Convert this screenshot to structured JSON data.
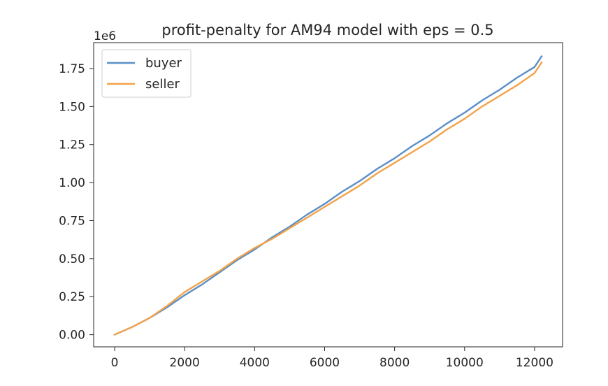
{
  "chart_data": {
    "type": "line",
    "title": "profit-penalty for AM94 model with eps = 0.5",
    "xlabel": "",
    "ylabel": "",
    "y_offset_label": "1e6",
    "xlim": [
      -600,
      12800
    ],
    "ylim": [
      -0.08,
      1.92
    ],
    "x_ticks": [
      0,
      2000,
      4000,
      6000,
      8000,
      10000,
      12000
    ],
    "x_tick_labels": [
      "0",
      "2000",
      "4000",
      "6000",
      "8000",
      "10000",
      "12000"
    ],
    "y_ticks": [
      0.0,
      0.25,
      0.5,
      0.75,
      1.0,
      1.25,
      1.5,
      1.75
    ],
    "y_tick_labels": [
      "0.00",
      "0.25",
      "0.50",
      "0.75",
      "1.00",
      "1.25",
      "1.50",
      "1.75"
    ],
    "grid": false,
    "legend_position": "top-left",
    "colors": {
      "buyer": "#5a8fc6",
      "seller": "#f2a24a",
      "axes": "#262626"
    },
    "series": [
      {
        "name": "buyer",
        "x": [
          0,
          500,
          1000,
          1500,
          2000,
          2500,
          3000,
          3500,
          4000,
          4500,
          5000,
          5500,
          6000,
          6500,
          7000,
          7500,
          8000,
          8500,
          9000,
          9500,
          10000,
          10500,
          11000,
          11500,
          12000,
          12200
        ],
        "values": [
          0.0,
          0.05,
          0.11,
          0.18,
          0.26,
          0.33,
          0.41,
          0.49,
          0.56,
          0.64,
          0.71,
          0.79,
          0.86,
          0.94,
          1.01,
          1.09,
          1.16,
          1.24,
          1.31,
          1.39,
          1.46,
          1.54,
          1.61,
          1.69,
          1.76,
          1.83
        ]
      },
      {
        "name": "seller",
        "x": [
          0,
          500,
          1000,
          1500,
          2000,
          2500,
          3000,
          3500,
          4000,
          4500,
          5000,
          5500,
          6000,
          6500,
          7000,
          7500,
          8000,
          8500,
          9000,
          9500,
          10000,
          10500,
          11000,
          11500,
          12000,
          12200
        ],
        "values": [
          0.0,
          0.05,
          0.11,
          0.19,
          0.28,
          0.35,
          0.42,
          0.5,
          0.57,
          0.63,
          0.7,
          0.77,
          0.84,
          0.91,
          0.98,
          1.06,
          1.13,
          1.2,
          1.27,
          1.35,
          1.42,
          1.5,
          1.57,
          1.64,
          1.72,
          1.79
        ]
      }
    ]
  }
}
